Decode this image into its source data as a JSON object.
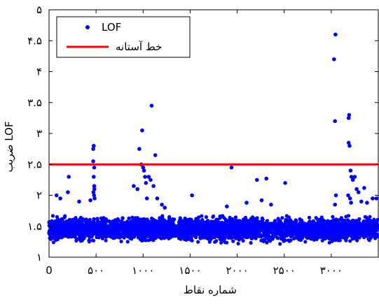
{
  "chart_data": {
    "type": "scatter",
    "title": "",
    "xlabel": "شماره نقاط",
    "ylabel": "ضریب LOF",
    "xlim": [
      0,
      3500
    ],
    "ylim": [
      1,
      5
    ],
    "x_ticks": [
      {
        "value": 0,
        "label": "0"
      },
      {
        "value": 500,
        "label": "۵۰۰"
      },
      {
        "value": 1000,
        "label": "۱۰۰۰"
      },
      {
        "value": 1500,
        "label": "۱۵۰۰"
      },
      {
        "value": 2000,
        "label": "۲۰۰۰"
      },
      {
        "value": 2500,
        "label": "۲۵۰۰"
      },
      {
        "value": 3000,
        "label": "۳۰۰۰"
      }
    ],
    "y_ticks": [
      {
        "value": 1,
        "label": "۱"
      },
      {
        "value": 1.5,
        "label": "۱.۵"
      },
      {
        "value": 2,
        "label": "۲"
      },
      {
        "value": 2.5,
        "label": "۲.۵"
      },
      {
        "value": 3,
        "label": "۳"
      },
      {
        "value": 3.5,
        "label": "۳.۵"
      },
      {
        "value": 4,
        "label": "۴"
      },
      {
        "value": 4.5,
        "label": "۴.۵"
      },
      {
        "value": 5,
        "label": "۵"
      }
    ],
    "grid": false,
    "legend_position": "top-left",
    "legend": [
      {
        "name": "LOF",
        "kind": "marker",
        "color": "#0000ff"
      },
      {
        "name": "خط آستانه",
        "kind": "line",
        "color": "#ff0000"
      }
    ],
    "series": [
      {
        "name": "LOF",
        "kind": "scatter",
        "color": "#0000ff",
        "dense_band": {
          "x_range": [
            0,
            3500
          ],
          "y_range": [
            1.2,
            1.7
          ],
          "count": 3400
        },
        "points": [
          {
            "x": 80,
            "y": 2.0
          },
          {
            "x": 120,
            "y": 1.95
          },
          {
            "x": 200,
            "y": 2.05
          },
          {
            "x": 210,
            "y": 2.3
          },
          {
            "x": 320,
            "y": 1.9
          },
          {
            "x": 440,
            "y": 1.92
          },
          {
            "x": 470,
            "y": 2.75
          },
          {
            "x": 475,
            "y": 2.8
          },
          {
            "x": 470,
            "y": 2.55
          },
          {
            "x": 480,
            "y": 2.45
          },
          {
            "x": 475,
            "y": 2.3
          },
          {
            "x": 480,
            "y": 2.15
          },
          {
            "x": 472,
            "y": 2.05
          },
          {
            "x": 485,
            "y": 1.95
          },
          {
            "x": 478,
            "y": 2.0
          },
          {
            "x": 482,
            "y": 2.1
          },
          {
            "x": 900,
            "y": 2.15
          },
          {
            "x": 940,
            "y": 2.1
          },
          {
            "x": 960,
            "y": 2.75
          },
          {
            "x": 980,
            "y": 2.5
          },
          {
            "x": 990,
            "y": 3.05
          },
          {
            "x": 1000,
            "y": 2.45
          },
          {
            "x": 1010,
            "y": 2.4
          },
          {
            "x": 1020,
            "y": 2.3
          },
          {
            "x": 1030,
            "y": 2.2
          },
          {
            "x": 1040,
            "y": 1.95
          },
          {
            "x": 1060,
            "y": 2.3
          },
          {
            "x": 1080,
            "y": 2.25
          },
          {
            "x": 1090,
            "y": 3.45
          },
          {
            "x": 1110,
            "y": 2.15
          },
          {
            "x": 1130,
            "y": 2.65
          },
          {
            "x": 1150,
            "y": 1.95
          },
          {
            "x": 1200,
            "y": 1.85
          },
          {
            "x": 1230,
            "y": 1.8
          },
          {
            "x": 1520,
            "y": 2.0
          },
          {
            "x": 1890,
            "y": 1.82
          },
          {
            "x": 1940,
            "y": 2.45
          },
          {
            "x": 2100,
            "y": 1.88
          },
          {
            "x": 2210,
            "y": 2.25
          },
          {
            "x": 2260,
            "y": 1.92
          },
          {
            "x": 2310,
            "y": 2.27
          },
          {
            "x": 2360,
            "y": 1.85
          },
          {
            "x": 2510,
            "y": 2.2
          },
          {
            "x": 3030,
            "y": 4.2
          },
          {
            "x": 3045,
            "y": 4.6
          },
          {
            "x": 3040,
            "y": 3.2
          },
          {
            "x": 3050,
            "y": 2.0
          },
          {
            "x": 3040,
            "y": 1.85
          },
          {
            "x": 3190,
            "y": 3.3
          },
          {
            "x": 3185,
            "y": 3.25
          },
          {
            "x": 3185,
            "y": 2.85
          },
          {
            "x": 3195,
            "y": 2.8
          },
          {
            "x": 3205,
            "y": 2.4
          },
          {
            "x": 3215,
            "y": 2.3
          },
          {
            "x": 3230,
            "y": 2.25
          },
          {
            "x": 3250,
            "y": 2.3
          },
          {
            "x": 3270,
            "y": 2.1
          },
          {
            "x": 3290,
            "y": 2.05
          },
          {
            "x": 3320,
            "y": 1.9
          },
          {
            "x": 3350,
            "y": 2.12
          },
          {
            "x": 3380,
            "y": 1.88
          },
          {
            "x": 3440,
            "y": 1.95
          },
          {
            "x": 3480,
            "y": 1.95
          },
          {
            "x": 3200,
            "y": 1.95
          },
          {
            "x": 3210,
            "y": 1.88
          },
          {
            "x": 3180,
            "y": 2.0
          }
        ]
      },
      {
        "name": "خط آستانه",
        "kind": "line",
        "color": "#ff0000",
        "y": 2.5
      }
    ]
  }
}
